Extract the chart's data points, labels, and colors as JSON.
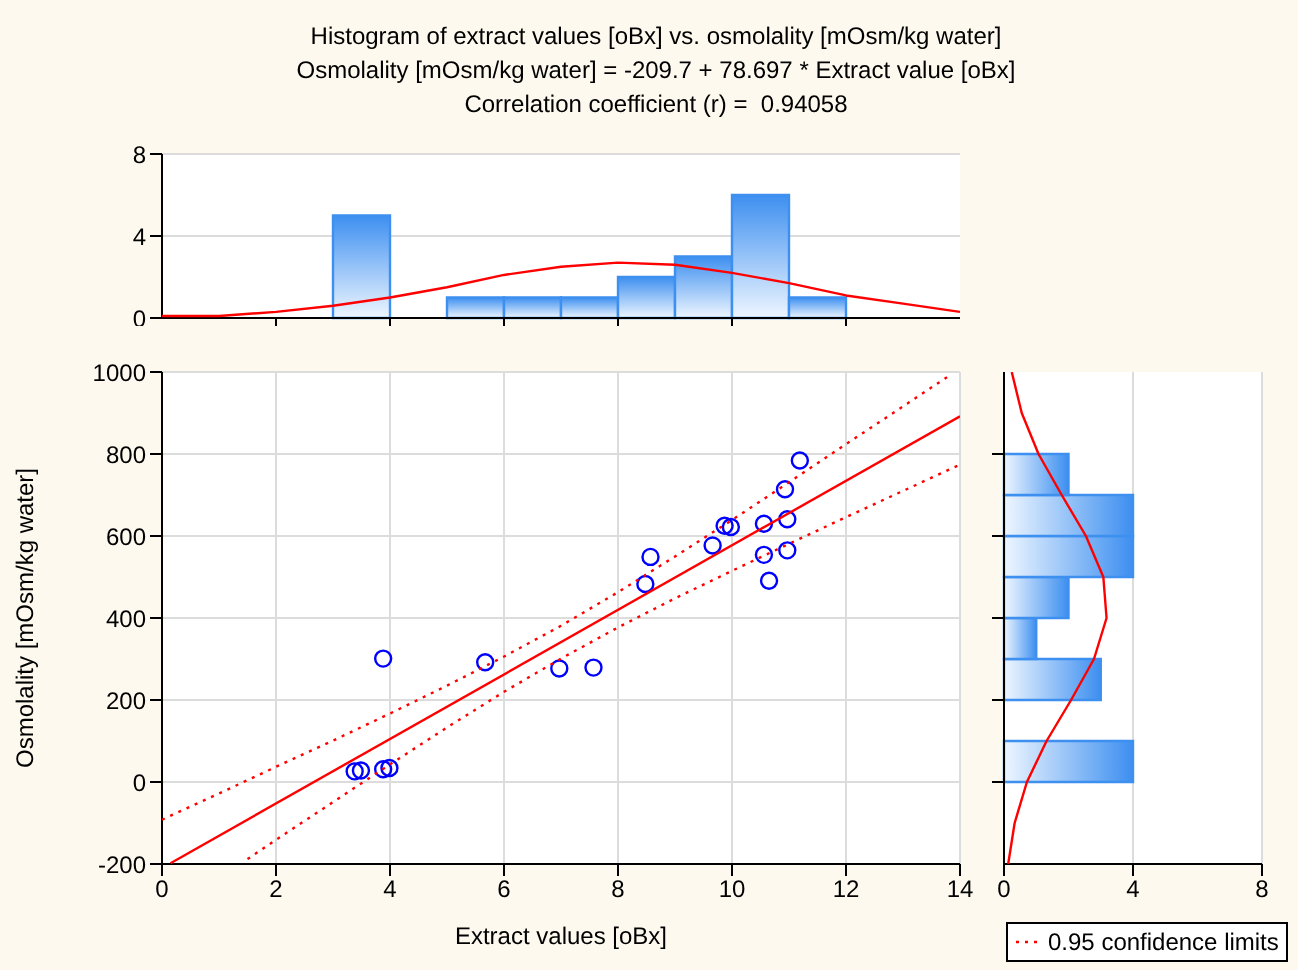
{
  "chart_data": [
    {
      "type": "histogram",
      "title": "Histogram of extract values [oBx] vs. osmolality [mOsm/kg water]",
      "subtitle": "Osmolality [mOsm/kg water] = -209.7 + 78.697 * Extract value [oBx]",
      "annotations": [
        "Correlation coefficient (r) =  0.94058"
      ],
      "xlim": [
        0,
        14
      ],
      "xticks": [
        {
          "value": 2,
          "label": null
        },
        {
          "value": 4,
          "label": null
        },
        {
          "value": 6,
          "label": null
        },
        {
          "value": 8,
          "label": null
        },
        {
          "value": 10,
          "label": null
        },
        {
          "value": 12,
          "label": null
        }
      ],
      "ylim": [
        0,
        8
      ],
      "yticks": [
        0,
        4,
        8
      ],
      "grid": "y",
      "tick_labels": "y",
      "series": [
        {
          "color": "#3d8ff0",
          "bins": [
            2,
            3,
            4,
            5,
            6,
            7,
            8,
            9,
            10,
            11,
            12,
            13
          ],
          "values": [
            0,
            5,
            0,
            1,
            1,
            1,
            2,
            3,
            6,
            1,
            0
          ]
        },
        {
          "type": "line",
          "color": "#ff0000",
          "x": [
            0,
            1,
            2,
            3,
            4,
            5,
            6,
            7,
            8,
            9,
            10,
            11,
            12,
            13,
            14
          ],
          "values": [
            0.1,
            0.1,
            0.3,
            0.6,
            1,
            1.5,
            2.1,
            2.5,
            2.7,
            2.6,
            2.2,
            1.7,
            1.1,
            0.7,
            0.3
          ]
        }
      ]
    },
    {
      "type": "scatter",
      "xlabel": "Extract values [oBx]",
      "ylabel": "Osmolality [mOsm/kg water]",
      "xlim": [
        0,
        14
      ],
      "xticks": [
        0,
        2,
        4,
        6,
        8,
        10,
        12,
        14
      ],
      "ylim": [
        -200,
        1000
      ],
      "yticks": [
        -200,
        0,
        200,
        400,
        600,
        800,
        1000
      ],
      "grid": true,
      "legend": "bottom right",
      "marker": "circle",
      "series": [
        {
          "color": "#0000ff",
          "x": [
            3.38,
            3.49,
            3.88,
            3.99,
            3.88,
            5.67,
            6.97,
            7.57,
            8.48,
            8.57,
            9.66,
            9.87,
            9.98,
            10.56,
            10.56,
            10.65,
            10.93,
            10.97,
            10.97,
            11.19
          ],
          "values": [
            26,
            28,
            31,
            34,
            301,
            292,
            277,
            279,
            483,
            549,
            577,
            625,
            622,
            630,
            554,
            491,
            714,
            641,
            565,
            784
          ]
        },
        {
          "type": "line",
          "color": "#ff0000",
          "line_style": "solid",
          "marker": "none",
          "x": [
            0.15,
            14
          ],
          "values": [
            -198,
            892
          ]
        },
        {
          "type": "line",
          "name": "0.95 confidence limits",
          "color": "#ff0000",
          "line_style": "dotted",
          "marker": "none",
          "x": [
            0,
            1,
            2,
            3,
            4,
            5,
            6,
            7,
            8,
            9,
            10,
            11,
            12,
            13,
            13.8
          ],
          "values": [
            -92,
            -28,
            37,
            101,
            167,
            235,
            306,
            381,
            463,
            550,
            639,
            731,
            824,
            916,
            990
          ]
        },
        {
          "type": "line",
          "color": "#ff0000",
          "line_style": "dotted",
          "marker": "none",
          "x": [
            1.5,
            2,
            3,
            4,
            5,
            6,
            7,
            8,
            9,
            10,
            11,
            12,
            13,
            14
          ],
          "values": [
            -188,
            -141,
            -49,
            43,
            133,
            220,
            301,
            377,
            448,
            515,
            581,
            646,
            710,
            774
          ]
        }
      ]
    },
    {
      "type": "histogram",
      "orientation": "horizontal",
      "xlim": [
        0,
        8
      ],
      "xticks": [
        0,
        4,
        8
      ],
      "ylim": [
        -200,
        1000
      ],
      "yticks": [
        {
          "value": 0,
          "label": null
        },
        {
          "value": 200,
          "label": null
        },
        {
          "value": 400,
          "label": null
        },
        {
          "value": 600,
          "label": null
        },
        {
          "value": 800,
          "label": null
        }
      ],
      "grid": "x",
      "tick_labels": "x",
      "series": [
        {
          "color": "#3d8ff0",
          "bins": [
            -200,
            -100,
            0,
            100,
            200,
            300,
            400,
            500,
            600,
            700,
            800,
            900,
            1000
          ],
          "values": [
            0,
            0,
            4,
            0,
            3,
            1,
            2,
            4,
            4,
            2,
            0,
            0
          ]
        },
        {
          "type": "line",
          "color": "#ff0000",
          "x": [
            -200,
            -100,
            0,
            100,
            200,
            300,
            400,
            500,
            600,
            700,
            800,
            900,
            1000
          ],
          "values": [
            0.13,
            0.33,
            0.71,
            1.32,
            2.08,
            2.79,
            3.18,
            3.08,
            2.54,
            1.79,
            1.07,
            0.55,
            0.24
          ]
        }
      ]
    }
  ]
}
